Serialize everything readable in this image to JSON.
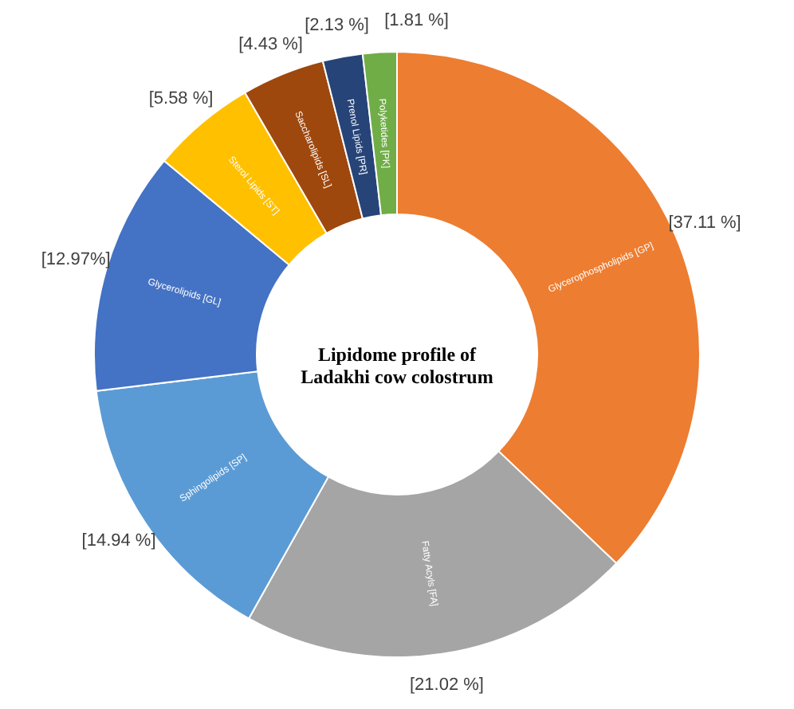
{
  "chart_data": {
    "type": "donut",
    "title": "Lipidome profile of Ladakhi cow colostrum",
    "categories": [
      "Glycerophospholipids [GP]",
      "Fatty Acyls [FA]",
      "Sphingolipids [SP]",
      "Glycerolipids [GL]",
      "Sterol Lipids [ST]",
      "Saccharolipids [SL]",
      "Prenol Lipids [PR]",
      "Polyketides [PK]"
    ],
    "values": [
      37.11,
      21.02,
      14.94,
      12.97,
      5.58,
      4.43,
      2.13,
      1.81
    ],
    "colors": [
      "#ed7d31",
      "#a5a5a5",
      "#5b9bd5",
      "#4472c4",
      "#ffc000",
      "#9e480e",
      "#264478",
      "#70ad47"
    ],
    "value_labels": [
      "[37.11 %]",
      "[21.02 %]",
      "[14.94 %]",
      "[12.97%]",
      "[5.58 %]",
      "[4.43 %]",
      "[2.13 %]",
      "[1.81 %]"
    ]
  }
}
